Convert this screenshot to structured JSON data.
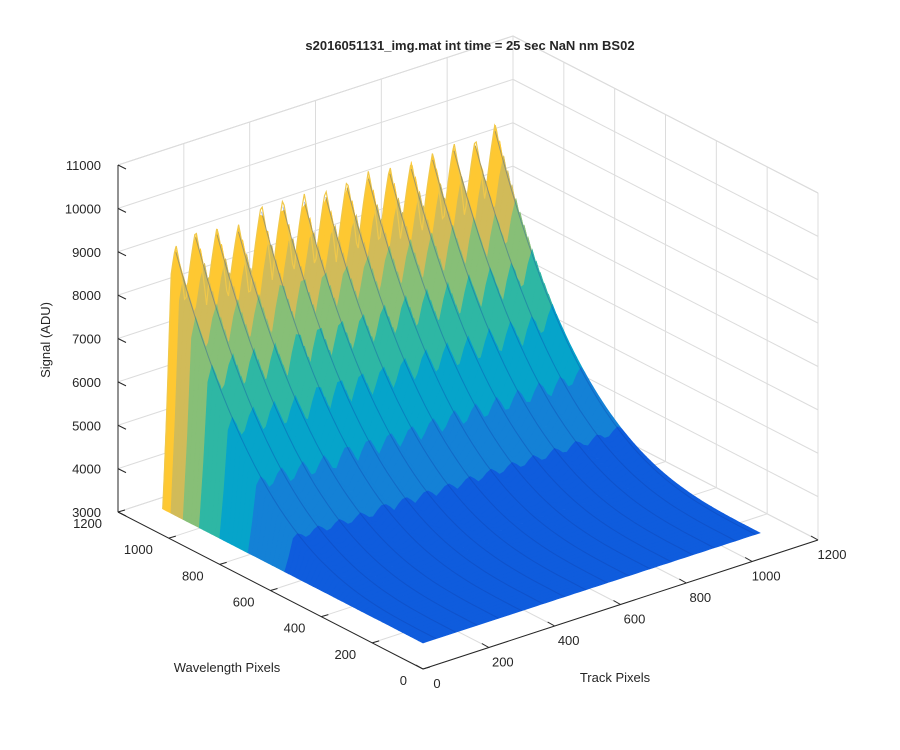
{
  "chart_data": {
    "type": "surface",
    "title": "s2016051131_img.mat int time = 25 sec  NaN nm BS02",
    "xlabel": "Track Pixels",
    "ylabel": "Wavelength Pixels",
    "zlabel": "Signal (ADU)",
    "xlim": [
      0,
      1200
    ],
    "ylim": [
      0,
      1200
    ],
    "zlim": [
      3000,
      11000
    ],
    "x_ticks": [
      0,
      200,
      400,
      600,
      800,
      1000,
      1200
    ],
    "y_ticks": [
      0,
      200,
      400,
      600,
      800,
      1000,
      1200
    ],
    "z_ticks": [
      3000,
      4000,
      5000,
      6000,
      7000,
      8000,
      9000,
      10000,
      11000
    ],
    "x_tick_labels": [
      "0",
      "200",
      "400",
      "600",
      "800",
      "1000",
      "1200"
    ],
    "y_tick_labels": [
      "0",
      "200",
      "400",
      "600",
      "800",
      "1000",
      "1200"
    ],
    "z_tick_labels": [
      "3000",
      "4000",
      "5000",
      "6000",
      "7000",
      "8000",
      "9000",
      "10000",
      "11000"
    ],
    "grid": true,
    "colormap": "parula",
    "colors": [
      "#352a87",
      "#0f5cdd",
      "#1481d6",
      "#06a4ca",
      "#2eb7a4",
      "#87bf77",
      "#d1bb59",
      "#fec832",
      "#f9fb0e"
    ],
    "surface_extent": {
      "track_pixels": [
        0,
        1024
      ],
      "wavelength_pixels": [
        0,
        1024
      ]
    },
    "baseline_signal": 3600,
    "track_peaks": [
      {
        "track": 40,
        "signal": 9600
      },
      {
        "track": 100,
        "signal": 9800
      },
      {
        "track": 165,
        "signal": 9700
      },
      {
        "track": 230,
        "signal": 9600
      },
      {
        "track": 300,
        "signal": 9900
      },
      {
        "track": 365,
        "signal": 9850
      },
      {
        "track": 430,
        "signal": 9800
      },
      {
        "track": 495,
        "signal": 9750
      },
      {
        "track": 560,
        "signal": 9800
      },
      {
        "track": 625,
        "signal": 9850
      },
      {
        "track": 690,
        "signal": 9800
      },
      {
        "track": 755,
        "signal": 9750
      },
      {
        "track": 820,
        "signal": 9800
      },
      {
        "track": 885,
        "signal": 9850
      },
      {
        "track": 950,
        "signal": 9800
      },
      {
        "track": 1010,
        "signal": 10000
      }
    ]
  }
}
